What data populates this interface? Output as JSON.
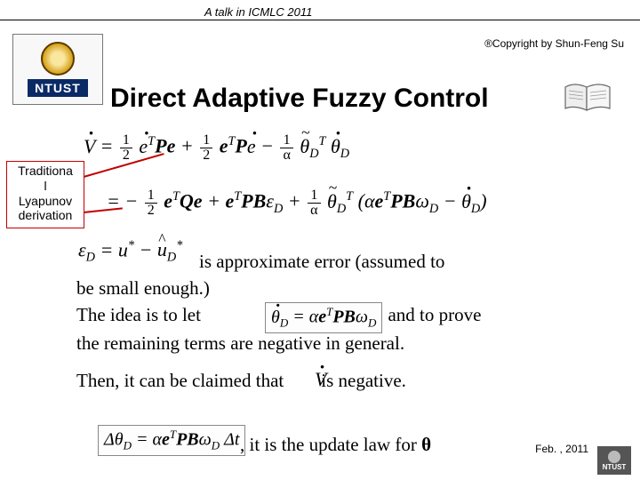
{
  "header": {
    "talk_label": "A talk in ICMLC 2011",
    "copyright": "®Copyright by Shun-Feng Su"
  },
  "logo": {
    "text": "NTUST"
  },
  "title": "Direct Adaptive Fuzzy Control",
  "callout": {
    "line1": "Traditiona",
    "line2": "l",
    "line3": "Lyapunov",
    "line4": "derivation",
    "border_color": "#c00000"
  },
  "equations": {
    "eq1_html": "<span class='dot'>V</span> = <span class='frac'><span class='num'>1</span><span class='den'>2</span></span> <span class='dot'>e</span><sup>T</sup><b>Pe</b> + <span class='frac'><span class='num'>1</span><span class='den'>2</span></span> <b>e</b><sup>T</sup><b>P</b><span class='dot'>e</span> &minus; <span class='frac'><span class='num'>1</span><span class='den'>α</span></span> <span class='tilde'>θ</span><sub>D</sub><sup>T</sup> <span class='dot'>θ</span><sub>D</sub>",
    "eq2_html": "= &minus; <span class='frac'><span class='num'>1</span><span class='den'>2</span></span> <b>e</b><sup>T</sup><b>Qe</b> + <b>e</b><sup>T</sup><b>PB</b>ε<sub>D</sub> + <span class='frac'><span class='num'>1</span><span class='den'>α</span></span> <span class='tilde'>θ</span><sub>D</sub><sup>T</sup> (α<b>e</b><sup>T</sup><b>PB</b>ω<sub>D</sub> &minus; <span class='dot'>θ</span><sub>D</sub>)",
    "eq3_html": "ε<sub>D</sub> = u<sup>*</sup> &minus; <span class='hat'>u</span><sub>D</sub><sup>*</sup>",
    "eq4_html": "<span class='dot'>θ</span><sub>D</sub> = α<b>e</b><sup>T</sup><b>PB</b>ω<sub>D</sub>",
    "eq5_html": "<span class='dot'>V</span>",
    "eq6_html": "Δθ<sub>D</sub> = α<b>e</b><sup>T</sup><b>PB</b>ω<sub>D</sub> Δt"
  },
  "body": {
    "t1": "is approximate error (assumed to",
    "t2": "be small enough.)",
    "t3_a": "The idea is to let",
    "t3_b": "and to prove",
    "t4": "the remaining terms are negative in general.",
    "t5_a": "Then, it can be claimed that",
    "t5_b": "is negative.",
    "t6": ", it is the update law for ",
    "t6_sym": "θ"
  },
  "footer": {
    "date": "Feb. , 2011",
    "logo_text": "NTUST"
  },
  "colors": {
    "accent_red": "#c00000",
    "logo_blue": "#0a2a66",
    "background": "#ffffff"
  },
  "fonts": {
    "title_size_pt": 30,
    "body_size_pt": 21,
    "eq_size_pt": 22,
    "header_size_pt": 13
  }
}
